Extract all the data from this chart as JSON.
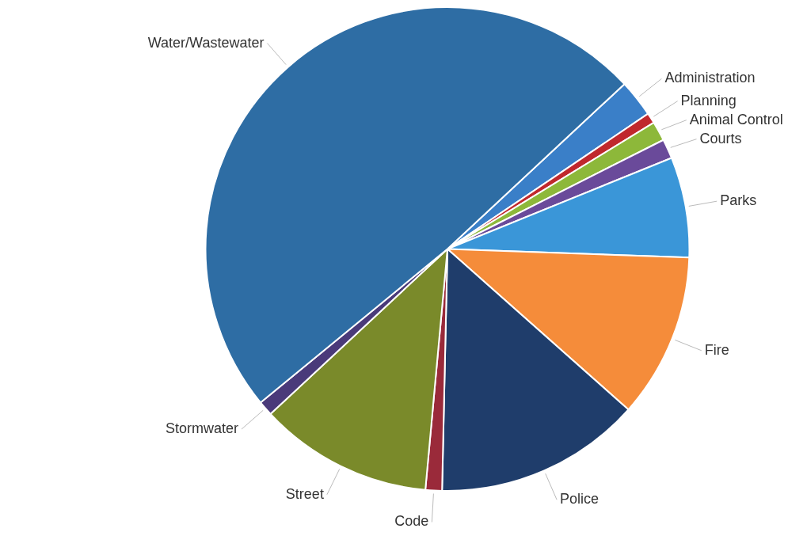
{
  "chart_data": {
    "type": "pie",
    "categories": [
      "Administration",
      "Planning",
      "Animal Control",
      "Courts",
      "Parks",
      "Fire",
      "Police",
      "Code",
      "Street",
      "Stormwater",
      "Water/Wastewater"
    ],
    "values": [
      2.5,
      0.7,
      1.3,
      1.3,
      6.7,
      11,
      13.8,
      1.1,
      11.6,
      1,
      49
    ],
    "colors": [
      "#3a7fc8",
      "#c0282d",
      "#8db83a",
      "#6a4a9a",
      "#3a96d8",
      "#f58c3a",
      "#1f3d6b",
      "#9a2a3a",
      "#7a8a2a",
      "#4a3a7a",
      "#2e6da4"
    ],
    "legend": false
  }
}
